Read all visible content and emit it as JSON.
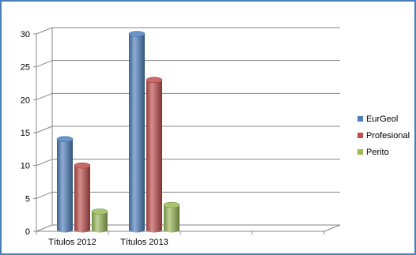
{
  "chart_data": {
    "type": "bar",
    "style": "3d-cylinder",
    "categories": [
      "Títulos 2012",
      "Títulos 2013"
    ],
    "series": [
      {
        "name": "EurGeol",
        "values": [
          14,
          30
        ],
        "color": "#4f81bd"
      },
      {
        "name": "Profesional",
        "values": [
          10,
          23
        ],
        "color": "#c0504d"
      },
      {
        "name": "Perito",
        "values": [
          3,
          4
        ],
        "color": "#9bbb59"
      }
    ],
    "ylim": [
      0,
      30
    ],
    "yticks": [
      0,
      5,
      10,
      15,
      20,
      25,
      30
    ],
    "grid": true,
    "legend_position": "right"
  },
  "colors": {
    "frame_border": "#4a7ebb",
    "gridline": "#868686",
    "axis": "#868686"
  }
}
